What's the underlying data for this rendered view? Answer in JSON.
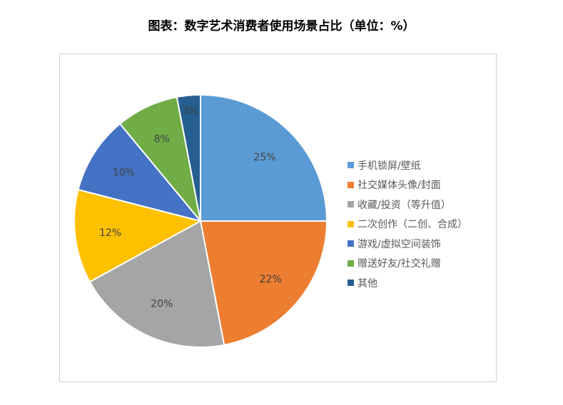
{
  "title": "图表：数字艺术消费者使用场景占比（单位：%）",
  "chart_data": {
    "type": "pie",
    "title": "图表：数字艺术消费者使用场景占比（单位：%）",
    "categories": [
      "手机锁屏/壁纸",
      "社交媒体头像/封面",
      "收藏/投资（等升值）",
      "二次创作（二创、合成）",
      "游戏/虚拟空间装饰",
      "赠送好友/社交礼赠",
      "其他"
    ],
    "values": [
      25,
      22,
      20,
      12,
      10,
      8,
      3
    ],
    "labels": [
      "25%",
      "22%",
      "20%",
      "12%",
      "10%",
      "8%",
      "3%"
    ],
    "colors": [
      "#5B9BD5",
      "#ED7D31",
      "#A5A5A5",
      "#FFC000",
      "#4472C4",
      "#70AD47",
      "#255E91"
    ],
    "start": "top, clockwise",
    "legend": "right"
  }
}
